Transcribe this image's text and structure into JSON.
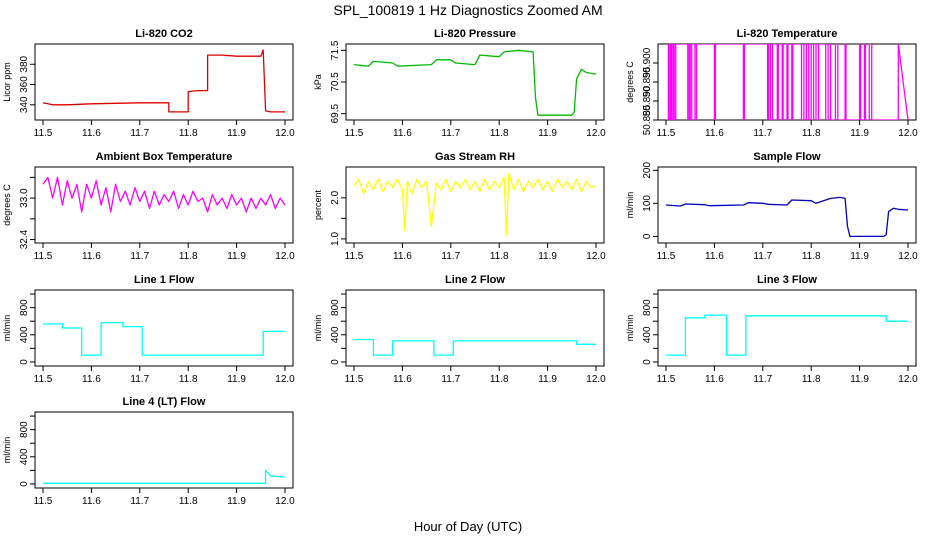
{
  "figure": {
    "title": "SPL_100819  1 Hz Diagnostics Zoomed AM",
    "xlabel": "Hour of Day (UTC)"
  },
  "chart_data": [
    {
      "type": "line",
      "title": "Li-820 CO2",
      "ylabel": "Licor ppm",
      "color": "#dd0000",
      "xlim": [
        11.5,
        12.0
      ],
      "xticks": [
        "11.5",
        "11.6",
        "11.7",
        "11.8",
        "11.9",
        "12.0"
      ],
      "ylim": [
        325,
        400
      ],
      "yticks": [
        340,
        360,
        380
      ],
      "ytick_labels": [
        "340",
        "360",
        "380"
      ],
      "series": [
        {
          "x": [
            11.5,
            11.52,
            11.55,
            11.6,
            11.65,
            11.7,
            11.75,
            11.76,
            11.76,
            11.8,
            11.8,
            11.82,
            11.84,
            11.84,
            11.87,
            11.9,
            11.95,
            11.955,
            11.96,
            11.97,
            12.0
          ],
          "y": [
            342,
            340,
            340,
            341,
            341.5,
            342,
            342,
            342,
            333,
            333,
            353,
            354,
            354,
            389,
            389,
            388,
            388,
            394,
            334,
            333,
            333
          ]
        }
      ]
    },
    {
      "type": "line",
      "title": "Li-820 Pressure",
      "ylabel": "kPa",
      "color": "#00bb00",
      "xlim": [
        11.5,
        12.0
      ],
      "xticks": [
        "11.5",
        "11.6",
        "11.7",
        "11.8",
        "11.9",
        "12.0"
      ],
      "ylim": [
        69.3,
        71.7
      ],
      "yticks": [
        69.5,
        70.5,
        71.5
      ],
      "ytick_labels": [
        "69.5",
        "70.5",
        "71.5"
      ],
      "series": [
        {
          "x": [
            11.5,
            11.53,
            11.54,
            11.58,
            11.59,
            11.66,
            11.67,
            11.7,
            11.71,
            11.75,
            11.76,
            11.8,
            11.81,
            11.84,
            11.87,
            11.875,
            11.88,
            11.95,
            11.955,
            11.96,
            11.97,
            11.98,
            12.0
          ],
          "y": [
            71.05,
            71.0,
            71.15,
            71.1,
            71.0,
            71.05,
            71.2,
            71.2,
            71.1,
            71.05,
            71.35,
            71.3,
            71.45,
            71.5,
            71.45,
            70.0,
            69.45,
            69.45,
            69.55,
            70.6,
            70.9,
            70.8,
            70.75
          ]
        }
      ]
    },
    {
      "type": "line",
      "title": "Li-820 Temperature",
      "ylabel": "degrees C",
      "color": "#ff00ff",
      "xlim": [
        11.5,
        12.0
      ],
      "xticks": [
        "11.5",
        "11.6",
        "11.7",
        "11.8",
        "11.9",
        "12.0"
      ],
      "ylim": [
        50.885,
        50.905
      ],
      "yticks": [
        50.885,
        50.89,
        50.895,
        50.9
      ],
      "ytick_labels": [
        "50.885",
        "50.890",
        "50.895",
        "50.900"
      ],
      "series": [
        {
          "x": [
            11.5,
            11.505,
            11.505,
            11.508,
            11.508,
            11.51,
            11.51,
            11.512,
            11.512,
            11.515,
            11.515,
            11.517,
            11.517,
            11.52,
            11.52,
            11.545,
            11.545,
            11.548,
            11.548,
            11.55,
            11.55,
            11.553,
            11.553,
            11.56,
            11.56,
            11.563,
            11.563,
            11.6,
            11.6,
            11.602,
            11.602,
            11.66,
            11.66,
            11.662,
            11.662,
            11.71,
            11.71,
            11.712,
            11.712,
            11.716,
            11.716,
            11.72,
            11.72,
            11.73,
            11.73,
            11.732,
            11.732,
            11.74,
            11.74,
            11.742,
            11.742,
            11.75,
            11.75,
            11.752,
            11.752,
            11.76,
            11.76,
            11.762,
            11.762,
            11.78,
            11.78,
            11.785,
            11.785,
            11.79,
            11.79,
            11.795,
            11.795,
            11.8,
            11.8,
            11.805,
            11.805,
            11.81,
            11.81,
            11.815,
            11.815,
            11.83,
            11.83,
            11.835,
            11.835,
            11.84,
            11.84,
            11.85,
            11.85,
            11.855,
            11.855,
            11.87,
            11.87,
            11.872,
            11.872,
            11.9,
            11.9,
            11.902,
            11.902,
            11.91,
            11.91,
            11.912,
            11.912,
            11.92,
            11.92,
            11.925,
            11.925,
            11.96,
            11.96,
            11.98,
            11.98,
            12.0
          ],
          "y": [
            50.885,
            50.885,
            50.905,
            50.905,
            50.885,
            50.885,
            50.905,
            50.905,
            50.885,
            50.885,
            50.905,
            50.905,
            50.885,
            50.885,
            50.905,
            50.905,
            50.885,
            50.885,
            50.905,
            50.905,
            50.885,
            50.885,
            50.905,
            50.905,
            50.885,
            50.885,
            50.905,
            50.905,
            50.885,
            50.885,
            50.905,
            50.905,
            50.885,
            50.885,
            50.905,
            50.905,
            50.885,
            50.885,
            50.905,
            50.905,
            50.885,
            50.885,
            50.905,
            50.905,
            50.885,
            50.885,
            50.905,
            50.905,
            50.885,
            50.885,
            50.905,
            50.905,
            50.885,
            50.885,
            50.905,
            50.905,
            50.885,
            50.885,
            50.905,
            50.905,
            50.885,
            50.885,
            50.905,
            50.905,
            50.885,
            50.885,
            50.905,
            50.905,
            50.885,
            50.885,
            50.905,
            50.905,
            50.885,
            50.885,
            50.905,
            50.905,
            50.885,
            50.885,
            50.905,
            50.905,
            50.885,
            50.885,
            50.905,
            50.905,
            50.885,
            50.885,
            50.905,
            50.905,
            50.885,
            50.885,
            50.905,
            50.905,
            50.885,
            50.885,
            50.905,
            50.905,
            50.885,
            50.885,
            50.905,
            50.905,
            50.885,
            50.885,
            50.885,
            50.885,
            50.905,
            50.885
          ]
        }
      ]
    },
    {
      "type": "line",
      "title": "Ambient Box Temperature",
      "ylabel": "degrees C",
      "color": "#ff00ff",
      "xlim": [
        11.5,
        12.0
      ],
      "xticks": [
        "11.5",
        "11.6",
        "11.7",
        "11.8",
        "11.9",
        "12.0"
      ],
      "ylim": [
        32.35,
        33.45
      ],
      "yticks": [
        32.4,
        32.7,
        33.0,
        33.3
      ],
      "ytick_labels": [
        "32.4",
        "",
        "33.0",
        ""
      ],
      "series": [
        {
          "x": [
            11.5,
            11.51,
            11.52,
            11.53,
            11.54,
            11.55,
            11.56,
            11.57,
            11.58,
            11.59,
            11.6,
            11.61,
            11.62,
            11.63,
            11.64,
            11.65,
            11.66,
            11.67,
            11.68,
            11.69,
            11.7,
            11.71,
            11.72,
            11.73,
            11.74,
            11.75,
            11.76,
            11.77,
            11.78,
            11.79,
            11.8,
            11.81,
            11.82,
            11.83,
            11.84,
            11.85,
            11.86,
            11.87,
            11.88,
            11.89,
            11.9,
            11.91,
            11.92,
            11.93,
            11.94,
            11.95,
            11.96,
            11.97,
            11.98,
            11.99,
            12.0
          ],
          "y": [
            33.2,
            33.3,
            33.0,
            33.3,
            32.9,
            33.25,
            33.0,
            33.2,
            32.8,
            33.2,
            33.0,
            33.25,
            32.9,
            33.15,
            32.8,
            33.2,
            32.95,
            33.1,
            32.9,
            33.15,
            32.95,
            33.1,
            32.85,
            33.1,
            32.9,
            33.05,
            32.95,
            33.1,
            32.85,
            33.05,
            32.9,
            33.1,
            32.95,
            33.0,
            32.8,
            33.05,
            32.9,
            33.0,
            32.85,
            33.05,
            32.9,
            33.0,
            32.8,
            33.0,
            32.85,
            33.0,
            32.9,
            33.05,
            32.85,
            33.0,
            32.9
          ]
        }
      ]
    },
    {
      "type": "line",
      "title": "Gas Stream RH",
      "ylabel": "percent",
      "color": "#ffff00",
      "xlim": [
        11.5,
        12.0
      ],
      "xticks": [
        "11.5",
        "11.6",
        "11.7",
        "11.8",
        "11.9",
        "12.0"
      ],
      "ylim": [
        0.9,
        2.75
      ],
      "yticks": [
        1.0,
        1.5,
        2.0
      ],
      "ytick_labels": [
        "1.0",
        "",
        "2.0"
      ],
      "series": [
        {
          "x": [
            11.5,
            11.51,
            11.52,
            11.53,
            11.54,
            11.55,
            11.56,
            11.57,
            11.58,
            11.59,
            11.6,
            11.605,
            11.61,
            11.62,
            11.63,
            11.64,
            11.65,
            11.66,
            11.67,
            11.68,
            11.69,
            11.7,
            11.71,
            11.72,
            11.73,
            11.74,
            11.75,
            11.76,
            11.77,
            11.78,
            11.79,
            11.8,
            11.81,
            11.815,
            11.82,
            11.83,
            11.84,
            11.85,
            11.86,
            11.87,
            11.88,
            11.89,
            11.9,
            11.91,
            11.92,
            11.93,
            11.94,
            11.95,
            11.96,
            11.97,
            11.98,
            11.99,
            12.0
          ],
          "y": [
            2.3,
            2.45,
            2.1,
            2.4,
            2.2,
            2.45,
            2.15,
            2.4,
            2.25,
            2.45,
            2.2,
            1.2,
            2.4,
            2.1,
            2.45,
            2.25,
            2.4,
            1.3,
            2.35,
            2.2,
            2.45,
            2.15,
            2.4,
            2.25,
            2.45,
            2.2,
            2.4,
            2.15,
            2.45,
            2.2,
            2.4,
            2.25,
            2.5,
            1.1,
            2.6,
            2.2,
            2.45,
            2.15,
            2.4,
            2.25,
            2.45,
            2.2,
            2.4,
            2.15,
            2.45,
            2.25,
            2.4,
            2.2,
            2.45,
            2.15,
            2.4,
            2.25,
            2.3
          ]
        }
      ]
    },
    {
      "type": "line",
      "title": "Sample Flow",
      "ylabel": "ml/min",
      "color": "#0000bb",
      "xlim": [
        11.5,
        12.0
      ],
      "xticks": [
        "11.5",
        "11.6",
        "11.7",
        "11.8",
        "11.9",
        "12.0"
      ],
      "ylim": [
        -20,
        210
      ],
      "yticks": [
        0,
        100,
        200
      ],
      "ytick_labels": [
        "0",
        "100",
        "200"
      ],
      "series": [
        {
          "x": [
            11.5,
            11.53,
            11.54,
            11.58,
            11.59,
            11.66,
            11.67,
            11.7,
            11.71,
            11.75,
            11.76,
            11.8,
            11.81,
            11.84,
            11.86,
            11.87,
            11.875,
            11.88,
            11.95,
            11.955,
            11.96,
            11.97,
            11.98,
            12.0
          ],
          "y": [
            95,
            92,
            98,
            96,
            93,
            95,
            102,
            100,
            97,
            95,
            110,
            108,
            100,
            115,
            118,
            115,
            30,
            0,
            0,
            5,
            75,
            85,
            82,
            80
          ]
        }
      ]
    },
    {
      "type": "line",
      "title": "Line 1 Flow",
      "ylabel": "ml/min",
      "color": "#00ffff",
      "xlim": [
        11.5,
        12.0
      ],
      "xticks": [
        "11.5",
        "11.6",
        "11.7",
        "11.8",
        "11.9",
        "12.0"
      ],
      "ylim": [
        -60,
        1060
      ],
      "yticks": [
        0,
        200,
        400,
        600,
        800,
        1000
      ],
      "ytick_labels": [
        "0",
        "",
        "400",
        "",
        "800",
        ""
      ],
      "series": [
        {
          "x": [
            11.5,
            11.54,
            11.54,
            11.58,
            11.58,
            11.62,
            11.62,
            11.665,
            11.665,
            11.705,
            11.705,
            11.955,
            11.955,
            12.0
          ],
          "y": [
            560,
            560,
            500,
            500,
            100,
            100,
            580,
            580,
            520,
            520,
            100,
            100,
            450,
            450
          ]
        }
      ]
    },
    {
      "type": "line",
      "title": "Line 2 Flow",
      "ylabel": "ml/min",
      "color": "#00ffff",
      "xlim": [
        11.5,
        12.0
      ],
      "xticks": [
        "11.5",
        "11.6",
        "11.7",
        "11.8",
        "11.9",
        "12.0"
      ],
      "ylim": [
        -60,
        1060
      ],
      "yticks": [
        0,
        200,
        400,
        600,
        800,
        1000
      ],
      "ytick_labels": [
        "0",
        "",
        "400",
        "",
        "800",
        ""
      ],
      "series": [
        {
          "x": [
            11.5,
            11.54,
            11.54,
            11.58,
            11.58,
            11.665,
            11.665,
            11.705,
            11.705,
            11.96,
            11.96,
            12.0
          ],
          "y": [
            330,
            330,
            100,
            100,
            310,
            310,
            100,
            100,
            310,
            310,
            260,
            260
          ]
        }
      ]
    },
    {
      "type": "line",
      "title": "Line 3 Flow",
      "ylabel": "ml/min",
      "color": "#00ffff",
      "xlim": [
        11.5,
        12.0
      ],
      "xticks": [
        "11.5",
        "11.6",
        "11.7",
        "11.8",
        "11.9",
        "12.0"
      ],
      "ylim": [
        -60,
        1060
      ],
      "yticks": [
        0,
        200,
        400,
        600,
        800,
        1000
      ],
      "ytick_labels": [
        "0",
        "",
        "400",
        "",
        "800",
        ""
      ],
      "series": [
        {
          "x": [
            11.5,
            11.54,
            11.54,
            11.58,
            11.58,
            11.625,
            11.625,
            11.665,
            11.665,
            11.955,
            11.955,
            12.0
          ],
          "y": [
            100,
            100,
            650,
            650,
            690,
            690,
            100,
            100,
            680,
            680,
            600,
            600
          ]
        }
      ]
    },
    {
      "type": "line",
      "title": "Line 4 (LT) Flow",
      "ylabel": "ml/min",
      "color": "#00ffff",
      "xlim": [
        11.5,
        12.0
      ],
      "xticks": [
        "11.5",
        "11.6",
        "11.7",
        "11.8",
        "11.9",
        "12.0"
      ],
      "ylim": [
        -60,
        1060
      ],
      "yticks": [
        0,
        200,
        400,
        600,
        800,
        1000
      ],
      "ytick_labels": [
        "0",
        "",
        "400",
        "",
        "800",
        ""
      ],
      "series": [
        {
          "x": [
            11.5,
            11.955,
            11.96,
            11.96,
            11.97,
            12.0
          ],
          "y": [
            10,
            10,
            10,
            200,
            120,
            100
          ]
        }
      ]
    }
  ]
}
